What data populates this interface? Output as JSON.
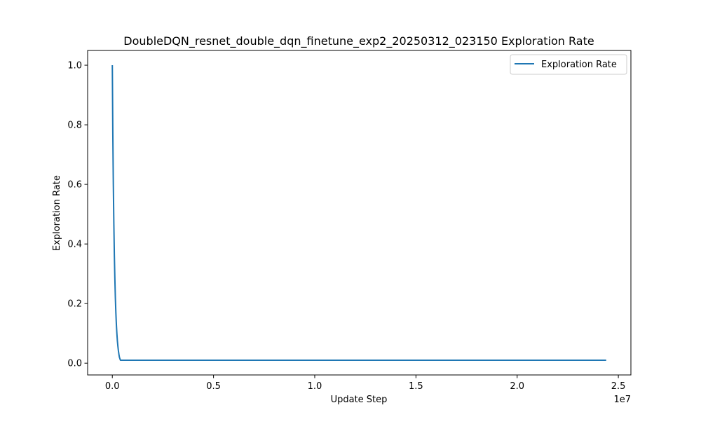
{
  "chart_data": {
    "type": "line",
    "title": "DoubleDQN_resnet_double_dqn_finetune_exp2_20250312_023150 Exploration Rate",
    "xlabel": "Update Step",
    "ylabel": "Exploration Rate",
    "x_offset_label": "1e7",
    "xlim": [
      -1220000,
      25620000
    ],
    "ylim": [
      -0.0395,
      1.0495
    ],
    "x_ticks": [
      0,
      5000000,
      10000000,
      15000000,
      20000000,
      25000000
    ],
    "x_tick_labels": [
      "0.0",
      "0.5",
      "1.0",
      "1.5",
      "2.0",
      "2.5"
    ],
    "y_ticks": [
      0.0,
      0.2,
      0.4,
      0.6,
      0.8,
      1.0
    ],
    "y_tick_labels": [
      "0.0",
      "0.2",
      "0.4",
      "0.6",
      "0.8",
      "1.0"
    ],
    "grid": false,
    "legend_position": "top-right",
    "series": [
      {
        "name": "Exploration Rate",
        "color": "#1f77b4",
        "x": [
          0,
          25000,
          50000,
          75000,
          100000,
          125000,
          150000,
          175000,
          200000,
          225000,
          250000,
          275000,
          300000,
          325000,
          350000,
          400000,
          500000,
          1000000,
          5000000,
          10000000,
          15000000,
          20000000,
          24400000
        ],
        "y": [
          1.0,
          0.77,
          0.6,
          0.47,
          0.365,
          0.285,
          0.22,
          0.17,
          0.13,
          0.1,
          0.075,
          0.057,
          0.042,
          0.03,
          0.02,
          0.01,
          0.01,
          0.01,
          0.01,
          0.01,
          0.01,
          0.01,
          0.01
        ]
      }
    ]
  }
}
